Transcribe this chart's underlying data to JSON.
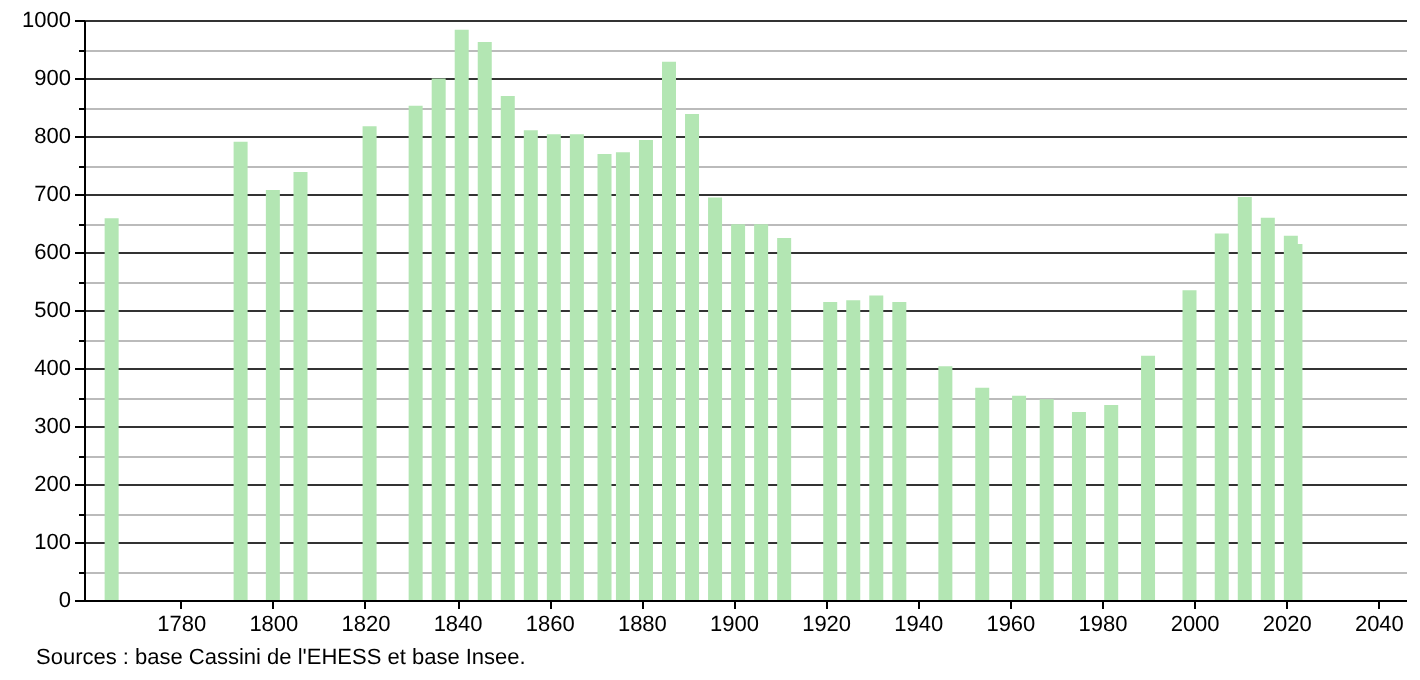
{
  "chart_data": {
    "type": "bar",
    "x": [
      1765,
      1793,
      1800,
      1806,
      1821,
      1831,
      1836,
      1841,
      1846,
      1851,
      1856,
      1861,
      1866,
      1872,
      1876,
      1881,
      1886,
      1891,
      1896,
      1901,
      1906,
      1911,
      1921,
      1926,
      1931,
      1936,
      1946,
      1954,
      1962,
      1968,
      1975,
      1982,
      1990,
      1999,
      2006,
      2011,
      2016,
      2021,
      2022
    ],
    "values": [
      658,
      790,
      707,
      738,
      817,
      852,
      899,
      983,
      962,
      869,
      810,
      803,
      803,
      769,
      772,
      793,
      928,
      838,
      694,
      648,
      648,
      624,
      514,
      517,
      525,
      514,
      403,
      366,
      352,
      346,
      324,
      336,
      421,
      534,
      632,
      695,
      659,
      628,
      614
    ],
    "color": "#b3e6b3",
    "xlim": [
      1759,
      2046
    ],
    "xticks": [
      1780,
      1800,
      1820,
      1840,
      1860,
      1880,
      1900,
      1920,
      1940,
      1960,
      1980,
      2000,
      2020,
      2040
    ],
    "ylim": [
      0,
      1000
    ],
    "yticks": [
      0,
      {
        "value": 50,
        "label": null
      },
      100,
      {
        "value": 150,
        "label": null
      },
      200,
      {
        "value": 250,
        "label": null
      },
      300,
      {
        "value": 350,
        "label": null
      },
      400,
      {
        "value": 450,
        "label": null
      },
      500,
      {
        "value": 550,
        "label": null
      },
      600,
      {
        "value": 650,
        "label": null
      },
      700,
      {
        "value": 750,
        "label": null
      },
      800,
      {
        "value": 850,
        "label": null
      },
      900,
      {
        "value": 950,
        "label": null
      },
      1000
    ],
    "grid": "y",
    "annotations": [
      "Sources : base Cassini de l'EHESS et base Insee."
    ]
  }
}
